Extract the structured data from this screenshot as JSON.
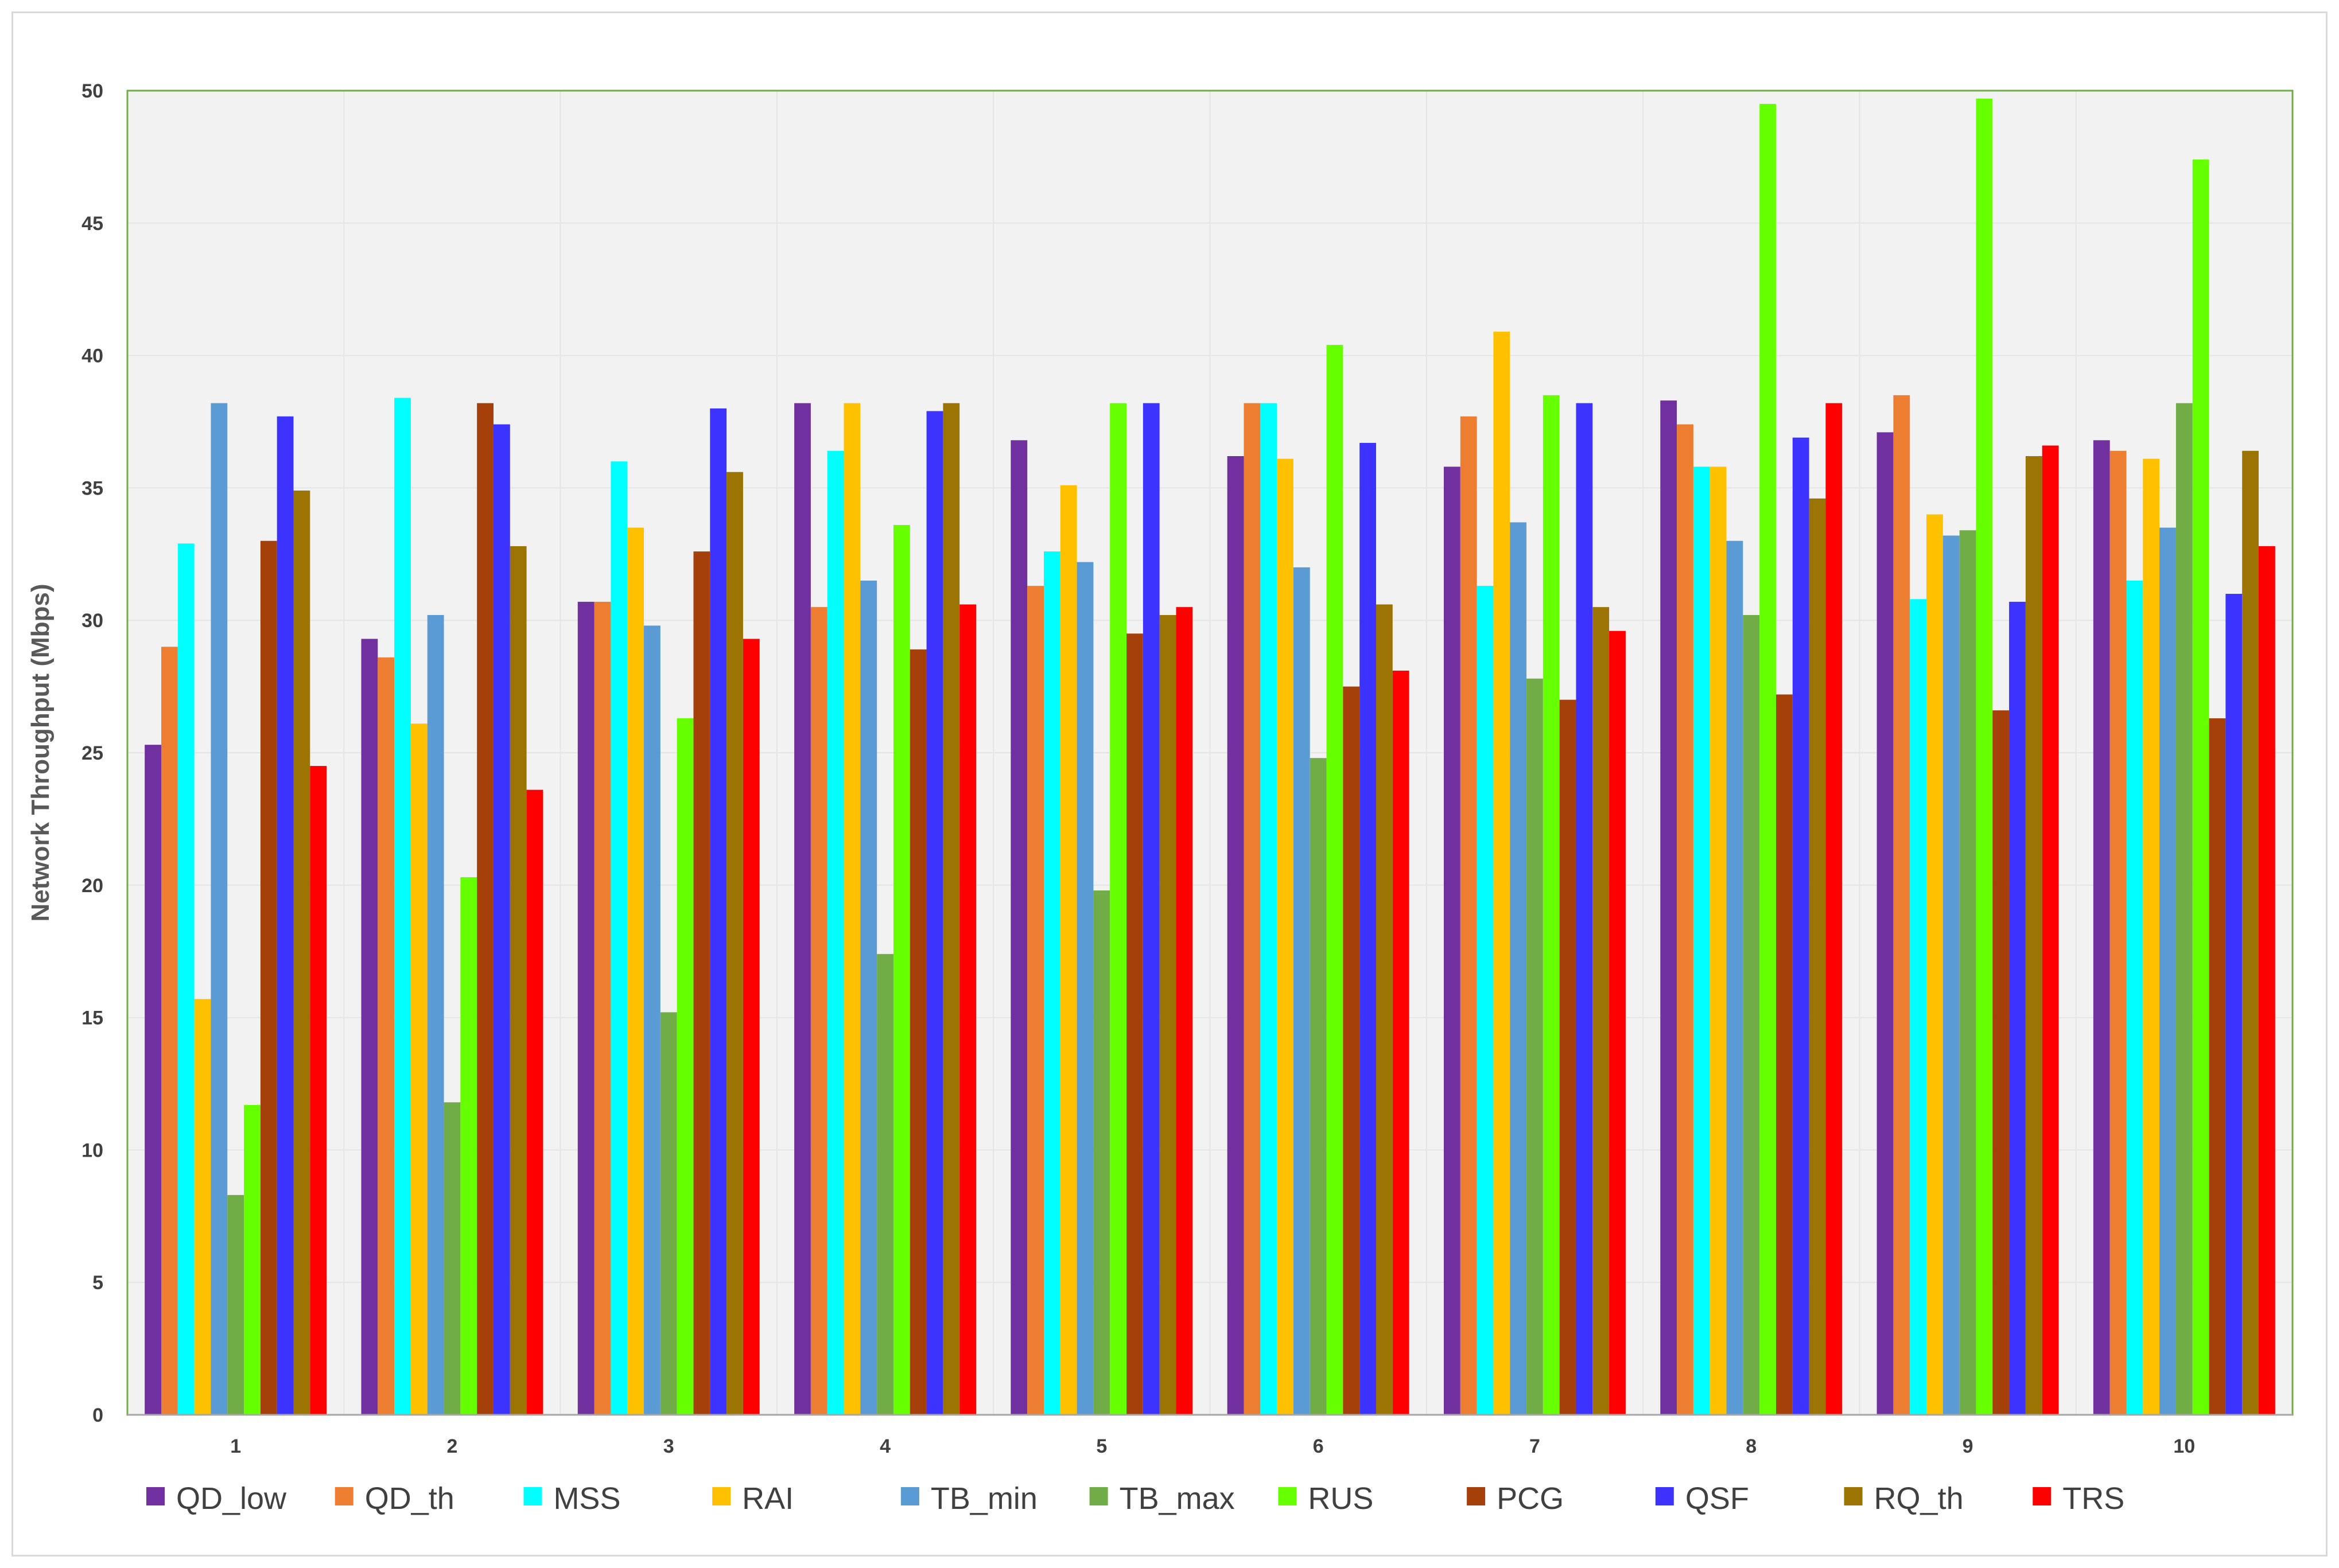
{
  "chart_data": {
    "type": "bar",
    "title": "",
    "xlabel": "",
    "ylabel": "Network Throughput (Mbps)",
    "ylim": [
      0,
      50
    ],
    "yticks": [
      0,
      5,
      10,
      15,
      20,
      25,
      30,
      35,
      40,
      45,
      50
    ],
    "grid": true,
    "legend_position": "bottom",
    "categories": [
      "1",
      "2",
      "3",
      "4",
      "5",
      "6",
      "7",
      "8",
      "9",
      "10"
    ],
    "series": [
      {
        "name": "QD_low",
        "color": "#7030a0",
        "values": [
          25.3,
          29.3,
          30.7,
          38.2,
          36.8,
          36.2,
          35.8,
          38.3,
          37.1,
          36.8
        ]
      },
      {
        "name": "QD_th",
        "color": "#ed7d31",
        "values": [
          29.0,
          28.6,
          30.7,
          30.5,
          31.3,
          38.2,
          37.7,
          37.4,
          38.5,
          36.4
        ]
      },
      {
        "name": "MSS",
        "color": "#00ffff",
        "values": [
          32.9,
          38.4,
          36.0,
          36.4,
          32.6,
          38.2,
          31.3,
          35.8,
          30.8,
          31.5
        ]
      },
      {
        "name": "RAI",
        "color": "#ffc000",
        "values": [
          15.7,
          26.1,
          33.5,
          38.2,
          35.1,
          36.1,
          40.9,
          35.8,
          34.0,
          36.1
        ]
      },
      {
        "name": "TB_min",
        "color": "#5b9bd5",
        "values": [
          38.2,
          30.2,
          29.8,
          31.5,
          32.2,
          32.0,
          33.7,
          33.0,
          33.2,
          33.5
        ]
      },
      {
        "name": "TB_max",
        "color": "#70ad47",
        "values": [
          8.3,
          11.8,
          15.2,
          17.4,
          19.8,
          24.8,
          27.8,
          30.2,
          33.4,
          38.2
        ]
      },
      {
        "name": "RUS",
        "color": "#66ff00",
        "values": [
          11.7,
          20.3,
          26.3,
          33.6,
          38.2,
          40.4,
          38.5,
          49.5,
          49.7,
          47.4
        ]
      },
      {
        "name": "PCG",
        "color": "#a5400b",
        "values": [
          33.0,
          38.2,
          32.6,
          28.9,
          29.5,
          27.5,
          27.0,
          27.2,
          26.6,
          26.3
        ]
      },
      {
        "name": "QSF",
        "color": "#3c33ff",
        "values": [
          37.7,
          37.4,
          38.0,
          37.9,
          38.2,
          36.7,
          38.2,
          36.9,
          30.7,
          31.0
        ]
      },
      {
        "name": "RQ_th",
        "color": "#9c7404",
        "values": [
          34.9,
          32.8,
          35.6,
          38.2,
          30.2,
          30.6,
          30.5,
          34.6,
          36.2,
          36.4
        ]
      },
      {
        "name": "TRS",
        "color": "#ff0000",
        "values": [
          24.5,
          23.6,
          29.3,
          30.6,
          30.5,
          28.1,
          29.6,
          38.2,
          36.6,
          32.8
        ]
      }
    ],
    "colors": {
      "plot_background": "#f2f2f2",
      "plot_border": "#70ad47",
      "gridline": "#e4e4e4"
    }
  }
}
